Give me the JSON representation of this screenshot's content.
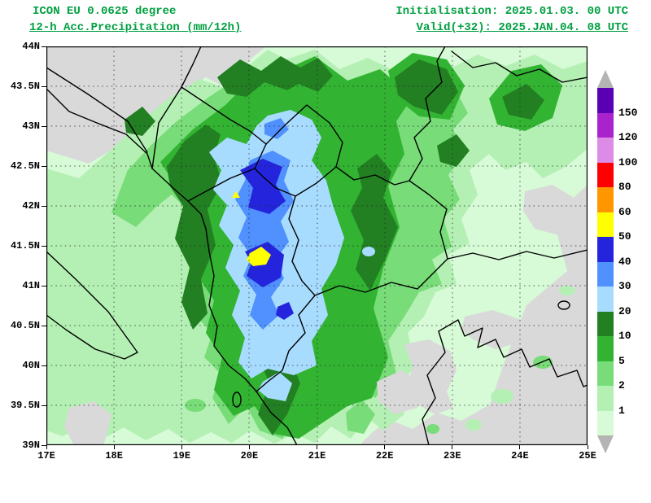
{
  "header": {
    "model_line": "ICON EU 0.0625 degree",
    "param_line": "12-h Acc.Precipitation (mm/12h)",
    "init_line": "Initialisation: 2025.01.03. 00 UTC",
    "valid_line": "Valid(+32): 2025.JAN.04. 08 UTC",
    "text_color": "#00a040"
  },
  "axes": {
    "x_ticks": [
      "17E",
      "18E",
      "19E",
      "20E",
      "21E",
      "22E",
      "23E",
      "24E",
      "25E"
    ],
    "y_ticks": [
      "44N",
      "43.5N",
      "43N",
      "42.5N",
      "42N",
      "41.5N",
      "41N",
      "40.5N",
      "40N",
      "39.5N",
      "39N"
    ]
  },
  "legend": {
    "labels": [
      "150",
      "120",
      "100",
      "80",
      "60",
      "50",
      "40",
      "30",
      "20",
      "10",
      "5",
      "2",
      "1"
    ],
    "colors": [
      "#5a00b4",
      "#aa22cc",
      "#dc8ce6",
      "#ff0000",
      "#ff9600",
      "#ffff00",
      "#2424dc",
      "#5090ff",
      "#a8dcff",
      "#228022",
      "#32b432",
      "#78dc78",
      "#b4f0b4",
      "#d7fad7"
    ],
    "triangle_color": "#b4b4b4"
  },
  "map": {
    "background": "#d9d9d9"
  }
}
